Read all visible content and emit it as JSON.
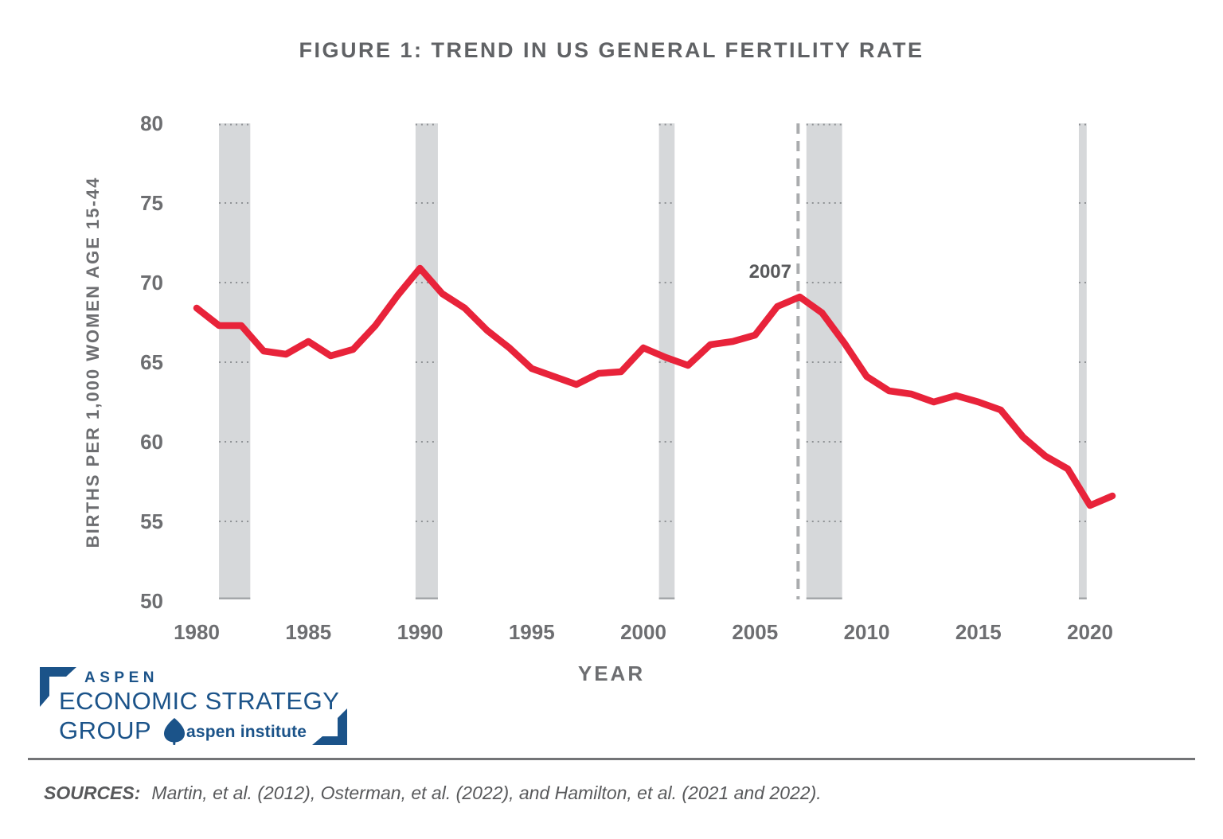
{
  "title": "FIGURE 1: TREND IN US GENERAL FERTILITY RATE",
  "chart_data": {
    "type": "line",
    "title": "FIGURE 1: TREND IN US GENERAL FERTILITY RATE",
    "xlabel": "YEAR",
    "ylabel": "BIRTHS PER 1,000 WOMEN AGE 15-44",
    "ylim": [
      50,
      80
    ],
    "yticks": [
      50,
      55,
      60,
      65,
      70,
      75,
      80
    ],
    "xticks": [
      1980,
      1985,
      1990,
      1995,
      2000,
      2005,
      2010,
      2015,
      2020
    ],
    "grid": "dotted horizontal gridlines visible over recession bands only",
    "legend": "none",
    "x": [
      1980,
      1981,
      1982,
      1983,
      1984,
      1985,
      1986,
      1987,
      1988,
      1989,
      1990,
      1991,
      1992,
      1993,
      1994,
      1995,
      1996,
      1997,
      1998,
      1999,
      2000,
      2001,
      2002,
      2003,
      2004,
      2005,
      2006,
      2007,
      2008,
      2009,
      2010,
      2011,
      2012,
      2013,
      2014,
      2015,
      2016,
      2017,
      2018,
      2019,
      2020,
      2021
    ],
    "series": [
      {
        "name": "US general fertility rate",
        "values": [
          68.4,
          67.3,
          67.3,
          65.7,
          65.5,
          66.3,
          65.4,
          65.8,
          67.3,
          69.2,
          70.9,
          69.3,
          68.4,
          67.0,
          65.9,
          64.6,
          64.1,
          63.6,
          64.3,
          64.4,
          65.9,
          65.3,
          64.8,
          66.1,
          66.3,
          66.7,
          68.5,
          69.1,
          68.1,
          66.2,
          64.1,
          63.2,
          63.0,
          62.5,
          62.9,
          62.5,
          62.0,
          60.3,
          59.1,
          58.3,
          56.0,
          56.6
        ]
      }
    ],
    "recession_bands": [
      [
        1981.0,
        1982.4
      ],
      [
        1989.8,
        1990.8
      ],
      [
        2000.7,
        2001.4
      ],
      [
        2007.3,
        2008.9
      ],
      [
        2019.5,
        2019.85
      ]
    ],
    "annotation": {
      "label": "2007",
      "year": 2007
    }
  },
  "colors": {
    "line": "#e8233a",
    "recession_band": "#d6d8da",
    "band_bottom_edge": "#a4a7aa",
    "grid_dots": "#8e9194",
    "dashed_line": "#aaacae",
    "axis_text": "#6d6e71",
    "logo_blue": "#1b5389"
  },
  "sources": {
    "label": "SOURCES:",
    "text": "Martin, et al. (2012), Osterman, et al. (2022), and Hamilton, et al. (2021 and 2022)."
  },
  "logo": {
    "line1": "ASPEN",
    "line2": "ECONOMIC STRATEGY",
    "line3": "GROUP",
    "partner": "aspen institute"
  }
}
